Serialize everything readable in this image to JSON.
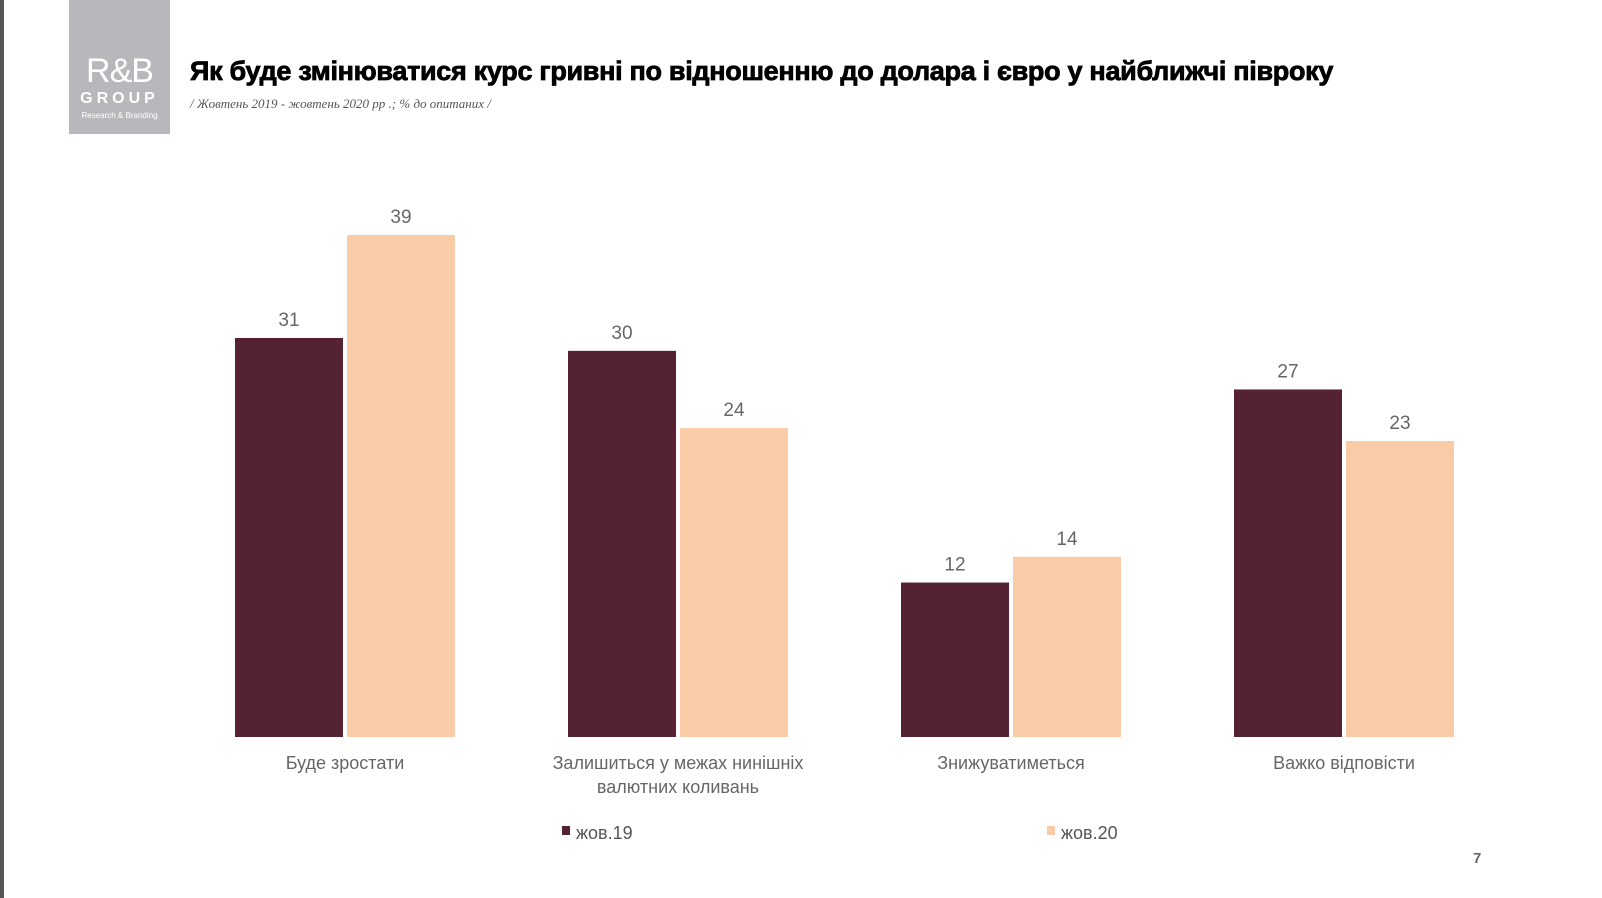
{
  "logo": {
    "text": "R&B",
    "group": "GROUP",
    "tagline": "Research & Branding"
  },
  "page_number": "7",
  "chart_data": {
    "type": "bar",
    "title": "Як буде змінюватися курс гривні по відношенню до долара і євро у найближчі півроку",
    "subtitle": "/ Жовтень 2019 - жовтень 2020 рр .; % до опитаних /",
    "categories": [
      [
        "Буде зростати"
      ],
      [
        "Залишиться у межах нинішніх",
        "валютних коливань"
      ],
      [
        "Знижуватиметься"
      ],
      [
        "Важко відповісти"
      ]
    ],
    "series": [
      {
        "name": "жов.19",
        "color": "#552233",
        "values": [
          31,
          30,
          12,
          27
        ]
      },
      {
        "name": "жов.20",
        "color": "#F9CBA7",
        "values": [
          39,
          24,
          14,
          23
        ]
      }
    ],
    "ylim": [
      0,
      39
    ],
    "grid": false,
    "legend": "bottom",
    "data_labels": true
  }
}
